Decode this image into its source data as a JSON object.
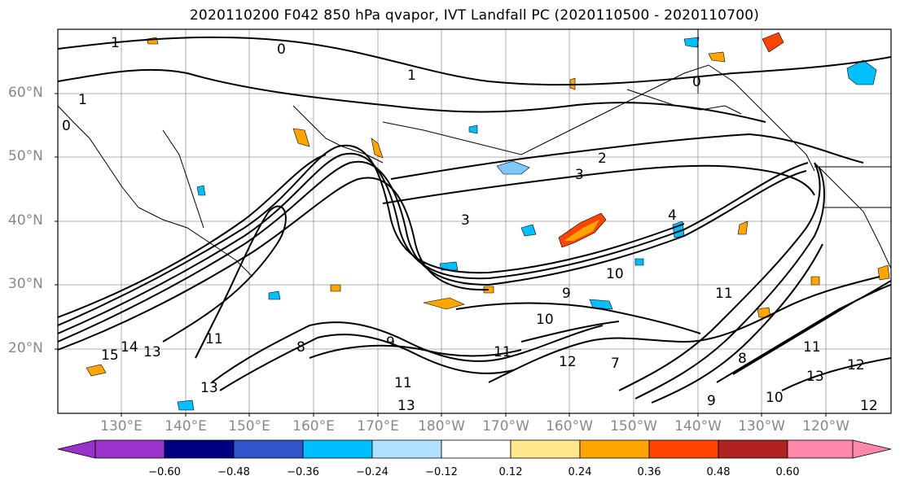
{
  "title": "2020110200 F042 850 hPa qvapor, IVT Landfall PC (2020110500 - 2020110700)",
  "map": {
    "lat_labels": [
      "60°N",
      "50°N",
      "40°N",
      "30°N",
      "20°N"
    ],
    "lon_labels": [
      "130°E",
      "140°E",
      "150°E",
      "160°E",
      "170°E",
      "180°W",
      "170°W",
      "160°W",
      "150°W",
      "140°W",
      "130°W",
      "120°W"
    ],
    "contour_labels": [
      "1",
      "0",
      "1",
      "0",
      "0",
      "1",
      "2",
      "3",
      "3",
      "4",
      "10",
      "9",
      "14",
      "13",
      "13",
      "11",
      "11",
      "13",
      "8",
      "9",
      "10",
      "11",
      "11",
      "12",
      "7",
      "8",
      "11",
      "12",
      "13",
      "12",
      "9",
      "10",
      "15"
    ]
  },
  "colorbar": {
    "tick_labels": [
      "−0.60",
      "−0.48",
      "−0.36",
      "−0.24",
      "−0.12",
      "0.12",
      "0.24",
      "0.36",
      "0.48",
      "0.60"
    ],
    "colors": [
      "#9933cc",
      "#000080",
      "#3355cc",
      "#00bfff",
      "#b0e2ff",
      "#ffffff",
      "#ffe88c",
      "#ffa500",
      "#ff4500",
      "#b22222",
      "#ff88aa"
    ]
  }
}
